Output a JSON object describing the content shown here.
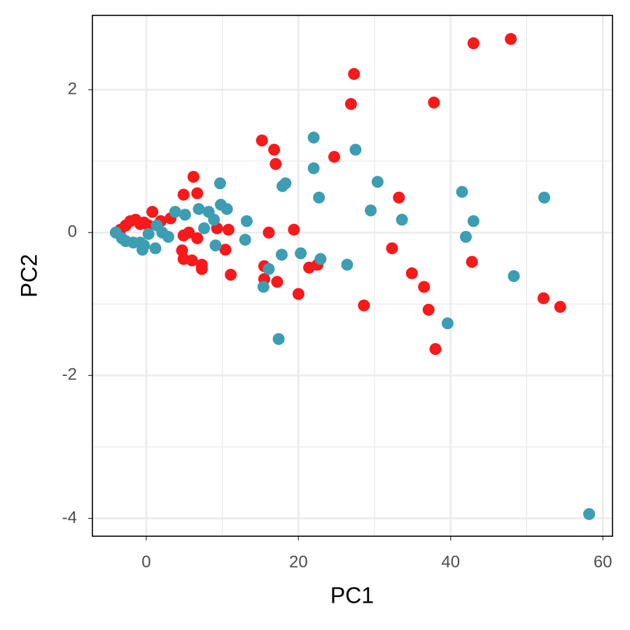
{
  "chart_data": {
    "type": "scatter",
    "x_label": "PC1",
    "y_label": "PC2",
    "xlim": [
      -7.08,
      61.27
    ],
    "ylim": [
      -4.25,
      3.04
    ],
    "xticks": [
      0,
      20,
      40,
      60
    ],
    "yticks": [
      -4,
      -2,
      0,
      2
    ],
    "grid": true,
    "series": [
      {
        "color": "#f8191a",
        "x": [
          -4.0,
          -3.4,
          -2.7,
          -2.1,
          -1.4,
          -0.8,
          -0.3,
          0.3,
          0.8,
          1.9,
          3.2,
          4.9,
          6.2,
          6.7,
          4.9,
          5.6,
          6.7,
          7.3,
          7.3,
          4.7,
          4.9,
          6.0,
          9.3,
          10.4,
          10.8,
          11.1,
          15.2,
          16.8,
          17.0,
          16.1,
          15.5,
          15.5,
          17.2,
          19.4,
          20.0,
          21.4,
          22.5,
          24.7,
          27.3,
          26.9,
          28.6,
          32.3,
          33.2,
          34.9,
          36.5,
          37.1,
          37.8,
          38.0,
          42.8,
          43.0,
          47.9,
          52.2,
          54.4
        ],
        "values": [
          0,
          0.04,
          0.1,
          0.16,
          0.18,
          0.12,
          0.14,
          0.1,
          0.29,
          0.16,
          0.2,
          0.53,
          0.78,
          0.55,
          -0.04,
          0,
          -0.08,
          -0.45,
          -0.51,
          -0.25,
          -0.37,
          -0.39,
          0.06,
          -0.24,
          0.04,
          -0.59,
          1.29,
          1.16,
          0.96,
          0,
          -0.47,
          -0.65,
          -0.69,
          0.04,
          -0.86,
          -0.49,
          -0.45,
          1.06,
          2.22,
          1.8,
          -1.02,
          -0.22,
          0.49,
          -0.57,
          -0.76,
          -1.08,
          1.82,
          -1.63,
          -0.41,
          2.65,
          2.71,
          -0.92,
          -1.04
        ]
      },
      {
        "color": "#3d9db3",
        "x": [
          -4.0,
          -3.2,
          -2.7,
          -1.7,
          -0.8,
          -0.5,
          -0.3,
          0.3,
          1.2,
          1.4,
          2.1,
          2.9,
          3.8,
          5.1,
          6.9,
          7.6,
          8.2,
          8.9,
          9.1,
          9.7,
          9.8,
          10.6,
          13.2,
          13.0,
          15.4,
          16.1,
          17.8,
          17.4,
          17.9,
          18.3,
          20.3,
          22.0,
          22.0,
          22.7,
          22.9,
          26.4,
          27.5,
          29.5,
          30.4,
          33.6,
          39.6,
          41.5,
          42.0,
          43.0,
          48.3,
          52.3,
          58.2
        ],
        "values": [
          0,
          -0.08,
          -0.12,
          -0.14,
          -0.14,
          -0.24,
          -0.18,
          -0.02,
          -0.22,
          0.1,
          0,
          -0.06,
          0.29,
          0.25,
          0.33,
          0.06,
          0.29,
          0.18,
          -0.18,
          0.69,
          0.39,
          0.33,
          0.16,
          -0.1,
          -0.76,
          -0.51,
          -0.31,
          -1.49,
          0.65,
          0.69,
          -0.29,
          1.33,
          0.9,
          0.49,
          -0.37,
          -0.45,
          1.16,
          0.31,
          0.71,
          0.18,
          -1.27,
          0.57,
          -0.06,
          0.16,
          -0.61,
          0.49,
          -3.94
        ]
      }
    ]
  }
}
